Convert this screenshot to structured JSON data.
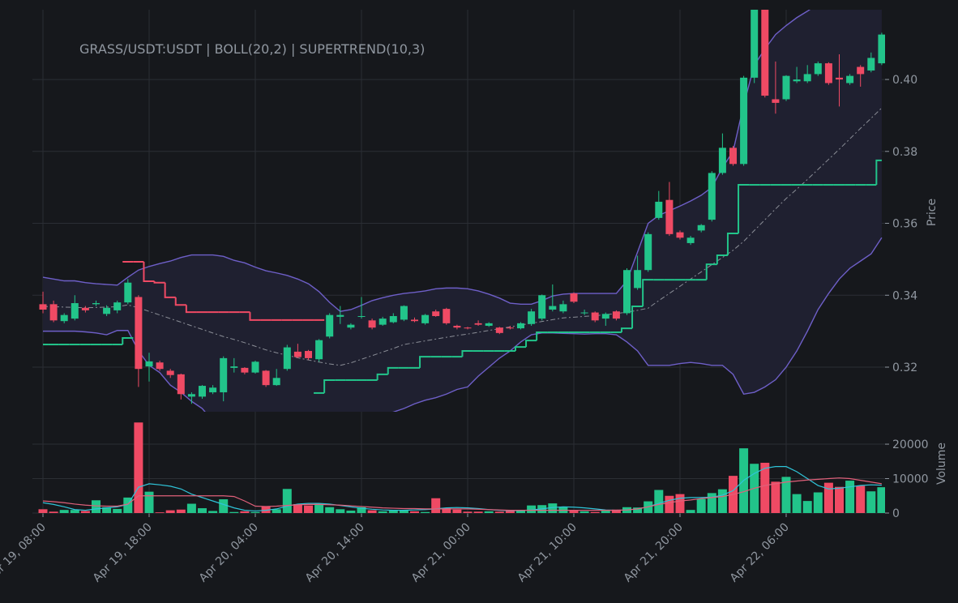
{
  "chart_data": [
    {
      "type": "candlestick",
      "title": "GRASS/USDT:USDT | BOLL(20,2) | SUPERTREND(10,3)",
      "ylabel": "Price",
      "x": [
        "Apr 19, 08:00",
        null,
        null,
        null,
        null,
        null,
        null,
        null,
        null,
        null,
        "Apr 19, 18:00",
        null,
        null,
        null,
        null,
        null,
        null,
        null,
        null,
        null,
        "Apr 20, 04:00",
        null,
        null,
        null,
        null,
        null,
        null,
        null,
        null,
        null,
        "Apr 20, 14:00",
        null,
        null,
        null,
        null,
        null,
        null,
        null,
        null,
        null,
        "Apr 21, 00:00",
        null,
        null,
        null,
        null,
        null,
        null,
        null,
        null,
        null,
        "Apr 21, 10:00",
        null,
        null,
        null,
        null,
        null,
        null,
        null,
        null,
        null,
        "Apr 21, 20:00",
        null,
        null,
        null,
        null,
        null,
        null,
        null,
        null,
        null,
        "Apr 22, 06:00",
        null,
        null,
        null,
        null,
        null,
        null,
        null,
        null,
        null
      ],
      "open": [
        0.3375,
        0.3375,
        0.3328,
        0.3335,
        0.3365,
        0.3375,
        0.3348,
        0.3358,
        0.338,
        0.3395,
        0.3202,
        0.3213,
        0.319,
        0.318,
        0.3118,
        0.3118,
        0.313,
        0.313,
        0.3198,
        0.3198,
        0.3185,
        0.319,
        0.315,
        0.3195,
        0.3243,
        0.3245,
        0.3222,
        0.3285,
        0.334,
        0.331,
        0.334,
        0.333,
        0.3318,
        0.3325,
        0.3332,
        0.3332,
        0.3322,
        0.3355,
        0.3362,
        0.3315,
        0.331,
        0.3322,
        0.3315,
        0.331,
        0.331,
        0.3308,
        0.332,
        0.3335,
        0.336,
        0.3355,
        0.3405,
        0.335,
        0.3352,
        0.3335,
        0.3355,
        0.335,
        0.342,
        0.347,
        0.3615,
        0.3665,
        0.3575,
        0.3545,
        0.358,
        0.361,
        0.374,
        0.381,
        0.3765,
        0.4005,
        0.423,
        0.3945,
        0.3945,
        0.3995,
        0.3995,
        0.4015,
        0.4045,
        0.4005,
        0.399,
        0.4035,
        0.4025,
        0.4045
      ],
      "high": [
        0.341,
        0.3385,
        0.335,
        0.34,
        0.337,
        0.3385,
        0.3372,
        0.3385,
        0.3445,
        0.34,
        0.324,
        0.3218,
        0.3195,
        0.3182,
        0.313,
        0.315,
        0.315,
        0.323,
        0.3225,
        0.32,
        0.3218,
        0.3192,
        0.3195,
        0.3262,
        0.3265,
        0.3248,
        0.3278,
        0.335,
        0.337,
        0.3322,
        0.3395,
        0.3335,
        0.334,
        0.335,
        0.3372,
        0.3338,
        0.3348,
        0.336,
        0.3365,
        0.3318,
        0.3312,
        0.333,
        0.3325,
        0.3312,
        0.3315,
        0.3325,
        0.3362,
        0.3402,
        0.343,
        0.3385,
        0.3408,
        0.336,
        0.3355,
        0.3352,
        0.3358,
        0.3475,
        0.351,
        0.3575,
        0.369,
        0.3715,
        0.358,
        0.3565,
        0.3598,
        0.3745,
        0.385,
        0.3815,
        0.401,
        0.425,
        0.424,
        0.405,
        0.4012,
        0.4035,
        0.404,
        0.405,
        0.4048,
        0.407,
        0.4015,
        0.404,
        0.4075,
        0.413
      ],
      "low": [
        0.335,
        0.3325,
        0.3322,
        0.333,
        0.3352,
        0.337,
        0.3342,
        0.335,
        0.3375,
        0.3145,
        0.316,
        0.319,
        0.317,
        0.311,
        0.3098,
        0.3112,
        0.3125,
        0.3105,
        0.3185,
        0.318,
        0.3182,
        0.3145,
        0.3148,
        0.319,
        0.3225,
        0.322,
        0.3215,
        0.328,
        0.332,
        0.3305,
        0.3335,
        0.3305,
        0.3315,
        0.3322,
        0.3328,
        0.3325,
        0.3318,
        0.334,
        0.3318,
        0.3305,
        0.3305,
        0.3315,
        0.3312,
        0.3292,
        0.3305,
        0.3305,
        0.3315,
        0.333,
        0.3355,
        0.335,
        0.3378,
        0.3345,
        0.3325,
        0.3315,
        0.333,
        0.3345,
        0.3415,
        0.3465,
        0.361,
        0.3565,
        0.3555,
        0.354,
        0.3575,
        0.3605,
        0.3735,
        0.376,
        0.376,
        0.399,
        0.395,
        0.3905,
        0.394,
        0.399,
        0.399,
        0.401,
        0.3985,
        0.3925,
        0.3985,
        0.398,
        0.402,
        0.404
      ],
      "close": [
        0.336,
        0.333,
        0.3345,
        0.3378,
        0.3358,
        0.3378,
        0.3365,
        0.338,
        0.3435,
        0.3195,
        0.3216,
        0.3195,
        0.3178,
        0.3125,
        0.3125,
        0.3148,
        0.3143,
        0.3225,
        0.3202,
        0.3185,
        0.3215,
        0.315,
        0.317,
        0.3255,
        0.3228,
        0.3225,
        0.3275,
        0.3345,
        0.3345,
        0.3318,
        0.3342,
        0.331,
        0.3335,
        0.3342,
        0.337,
        0.3328,
        0.3345,
        0.3342,
        0.3322,
        0.331,
        0.3308,
        0.3318,
        0.3322,
        0.3295,
        0.3308,
        0.3322,
        0.3355,
        0.34,
        0.337,
        0.3375,
        0.3382,
        0.3352,
        0.333,
        0.3348,
        0.3335,
        0.347,
        0.347,
        0.357,
        0.366,
        0.357,
        0.356,
        0.356,
        0.3595,
        0.374,
        0.381,
        0.3765,
        0.4005,
        0.423,
        0.3955,
        0.3935,
        0.401,
        0.4,
        0.4015,
        0.4045,
        0.399,
        0.4,
        0.401,
        0.4015,
        0.406,
        0.4125
      ],
      "up_color": "#22c48a",
      "down_color": "#ef4a64",
      "bands": {
        "color": "#6e5fc8",
        "fill": "#1f2030",
        "middle_color": "#8a8d96",
        "upper": [
          0.345,
          0.3445,
          0.344,
          0.344,
          0.3435,
          0.3432,
          0.343,
          0.3428,
          0.345,
          0.347,
          0.348,
          0.3488,
          0.3495,
          0.3505,
          0.3512,
          0.3512,
          0.3512,
          0.3508,
          0.3497,
          0.349,
          0.3478,
          0.3468,
          0.3462,
          0.3455,
          0.3445,
          0.3432,
          0.341,
          0.338,
          0.3355,
          0.336,
          0.3372,
          0.3385,
          0.3393,
          0.34,
          0.3405,
          0.3408,
          0.3412,
          0.3418,
          0.342,
          0.342,
          0.3418,
          0.3412,
          0.3403,
          0.3392,
          0.3378,
          0.3375,
          0.3375,
          0.3385,
          0.3398,
          0.3403,
          0.3405,
          0.3405,
          0.3405,
          0.3405,
          0.3405,
          0.344,
          0.352,
          0.36,
          0.3622,
          0.3635,
          0.3648,
          0.3662,
          0.3678,
          0.37,
          0.3755,
          0.38,
          0.393,
          0.404,
          0.4085,
          0.4125,
          0.415,
          0.4172,
          0.419,
          0.421,
          0.423,
          0.425,
          0.427,
          0.429,
          0.431,
          0.433
        ],
        "middle": [
          0.3369,
          0.3368,
          0.3367,
          0.3366,
          0.3365,
          0.3366,
          0.3367,
          0.3368,
          0.3373,
          0.3365,
          0.3355,
          0.3345,
          0.3335,
          0.3325,
          0.3315,
          0.3305,
          0.3295,
          0.3285,
          0.3277,
          0.3268,
          0.3258,
          0.3248,
          0.324,
          0.3233,
          0.3226,
          0.322,
          0.3214,
          0.3209,
          0.3205,
          0.3212,
          0.3222,
          0.3232,
          0.3242,
          0.3252,
          0.3263,
          0.3268,
          0.3273,
          0.3278,
          0.3283,
          0.3288,
          0.3292,
          0.3297,
          0.3302,
          0.3307,
          0.3312,
          0.3317,
          0.3322,
          0.3327,
          0.3332,
          0.3337,
          0.3339,
          0.3341,
          0.3343,
          0.3346,
          0.3349,
          0.3353,
          0.3358,
          0.3364,
          0.3385,
          0.3405,
          0.3425,
          0.3445,
          0.3465,
          0.3485,
          0.3505,
          0.3525,
          0.355,
          0.358,
          0.361,
          0.364,
          0.3669,
          0.3695,
          0.3722,
          0.375,
          0.3778,
          0.3806,
          0.3835,
          0.3864,
          0.3892,
          0.3921
        ],
        "lower": [
          0.33,
          0.33,
          0.33,
          0.33,
          0.3298,
          0.3295,
          0.329,
          0.3302,
          0.3302,
          0.3245,
          0.3205,
          0.3185,
          0.315,
          0.313,
          0.3105,
          0.3085,
          0.305,
          0.304,
          0.3035,
          0.303,
          0.303,
          0.3035,
          0.304,
          0.3045,
          0.3055,
          0.306,
          0.3065,
          0.3065,
          0.3065,
          0.306,
          0.306,
          0.3065,
          0.307,
          0.3075,
          0.3085,
          0.3098,
          0.3108,
          0.3115,
          0.3125,
          0.3138,
          0.3145,
          0.3175,
          0.32,
          0.3225,
          0.3245,
          0.327,
          0.329,
          0.3295,
          0.3295,
          0.3294,
          0.3293,
          0.3292,
          0.3293,
          0.3293,
          0.329,
          0.327,
          0.3245,
          0.3205,
          0.3205,
          0.3205,
          0.321,
          0.3213,
          0.321,
          0.3205,
          0.3205,
          0.318,
          0.3125,
          0.313,
          0.3145,
          0.3165,
          0.32,
          0.3245,
          0.33,
          0.336,
          0.3405,
          0.3445,
          0.3475,
          0.3495,
          0.3515,
          0.356
        ]
      },
      "supertrend": [
        {
          "color": "#22c48a",
          "values": [
            0.3263,
            0.3263,
            0.3263,
            0.3263,
            0.3263,
            0.3263,
            0.3263,
            0.3263,
            0.3281,
            null,
            null,
            null,
            null,
            null,
            null,
            null,
            null,
            null,
            null,
            null,
            null,
            null,
            null,
            null,
            null,
            null,
            0.3128,
            0.3164,
            0.3164,
            0.3164,
            0.3164,
            0.3164,
            0.318,
            0.3198,
            0.3198,
            0.3198,
            0.3229,
            0.3229,
            0.3229,
            0.3229,
            0.3245,
            0.3245,
            0.3245,
            0.3245,
            0.3245,
            0.3256,
            0.3274,
            0.3297,
            0.3297,
            0.3297,
            0.3297,
            0.3297,
            0.3297,
            0.3297,
            0.3297,
            0.3308,
            0.3369,
            0.3443,
            0.3443,
            0.3443,
            0.3443,
            0.3443,
            0.3443,
            0.3486,
            0.3511,
            0.3572,
            0.3707,
            0.3707,
            0.3707,
            0.3707,
            0.3707,
            0.3707,
            0.3707,
            0.3707,
            0.3707,
            0.3707,
            0.3707,
            0.3707,
            0.3707,
            0.3775
          ]
        },
        {
          "color": "#ef4a64",
          "values": [
            null,
            null,
            null,
            null,
            null,
            null,
            null,
            null,
            0.3493,
            0.3493,
            0.3439,
            0.3435,
            0.3394,
            0.3373,
            0.3353,
            0.3353,
            0.3353,
            0.3353,
            0.3353,
            0.3353,
            0.3331,
            0.3331,
            0.3331,
            0.3331,
            0.3331,
            0.3331,
            0.3331,
            null,
            null,
            null,
            null,
            null,
            null,
            null,
            null,
            null,
            null,
            null,
            null,
            null,
            null,
            null,
            null,
            null,
            null,
            null,
            null,
            null,
            null,
            null,
            null,
            null,
            null,
            null,
            null,
            null,
            null,
            null,
            null,
            null,
            null,
            null,
            null,
            null,
            null,
            null,
            null,
            null,
            null,
            null,
            null,
            null,
            null,
            null,
            null,
            null,
            null,
            null,
            null,
            null
          ]
        }
      ],
      "ylim": [
        0.3076,
        0.4194
      ],
      "yticks": [
        0.32,
        0.34,
        0.36,
        0.38,
        {
          "value": 0.4,
          "label": "0.40"
        }
      ],
      "grid": true
    },
    {
      "type": "bar",
      "ylabel": "Volume",
      "values": [
        1100,
        400,
        900,
        900,
        600,
        3700,
        1700,
        1200,
        4500,
        26300,
        6200,
        200,
        800,
        1000,
        2700,
        1400,
        600,
        4000,
        300,
        500,
        300,
        1900,
        1100,
        7000,
        2600,
        2200,
        2700,
        1700,
        1100,
        700,
        1700,
        800,
        500,
        700,
        800,
        500,
        300,
        4300,
        1400,
        1000,
        400,
        400,
        500,
        400,
        700,
        800,
        2200,
        2300,
        2800,
        1800,
        700,
        500,
        300,
        700,
        1000,
        1700,
        1600,
        3400,
        6700,
        5000,
        5500,
        900,
        4100,
        5800,
        6900,
        10800,
        18800,
        14300,
        14600,
        9100,
        10500,
        5500,
        3500,
        6000,
        8800,
        7600,
        9400,
        7900,
        6300,
        7500
      ],
      "series": [
        {
          "color": "#2fc4d8",
          "values": [
            3000,
            2500,
            1800,
            1000,
            800,
            1200,
            1500,
            1800,
            2500,
            7500,
            8500,
            8200,
            7800,
            7000,
            5500,
            4500,
            3500,
            2500,
            1500,
            800,
            600,
            800,
            1200,
            2000,
            2600,
            2800,
            2800,
            2600,
            2200,
            1800,
            1400,
            1100,
            900,
            800,
            800,
            900,
            1000,
            1200,
            1500,
            1600,
            1500,
            1300,
            1000,
            800,
            700,
            700,
            900,
            1200,
            1600,
            1800,
            1700,
            1500,
            1200,
            900,
            800,
            900,
            1200,
            1800,
            2800,
            3700,
            4300,
            4500,
            4500,
            4600,
            5200,
            6500,
            9500,
            11500,
            13000,
            13500,
            13500,
            12000,
            10000,
            8000,
            7000,
            7200,
            7600,
            8000,
            8200,
            8100
          ]
        },
        {
          "color": "#e0607a",
          "values": [
            3500,
            3300,
            3000,
            2600,
            2300,
            2100,
            2000,
            2000,
            2600,
            5000,
            5000,
            5000,
            5000,
            5000,
            5000,
            5000,
            5000,
            5000,
            4800,
            3500,
            2000,
            1900,
            2000,
            2200,
            2400,
            2500,
            2500,
            2400,
            2300,
            2100,
            1900,
            1700,
            1500,
            1400,
            1300,
            1300,
            1200,
            1200,
            1200,
            1200,
            1200,
            1100,
            1000,
            900,
            800,
            800,
            800,
            800,
            800,
            800,
            800,
            800,
            800,
            800,
            800,
            900,
            1200,
            1800,
            2500,
            3000,
            3500,
            3800,
            4200,
            4500,
            4800,
            5400,
            6200,
            7200,
            8000,
            8500,
            9000,
            9300,
            9600,
            9800,
            10000,
            10200,
            10000,
            9500,
            9000,
            8500
          ]
        }
      ],
      "ylim": [
        0,
        26600
      ],
      "yticks": [
        0,
        10000,
        20000
      ],
      "grid": true
    }
  ]
}
